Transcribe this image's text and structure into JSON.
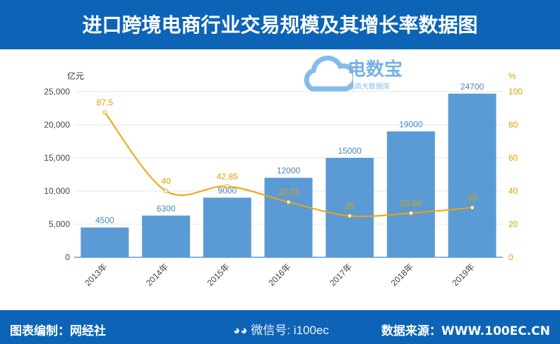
{
  "header": {
    "title": "进口跨境电商行业交易规模及其增长率数据图"
  },
  "footer": {
    "left": "图表编制：网经社",
    "right": "数据来源：WWW.100EC.CN",
    "wechat": "微信号: i100ec"
  },
  "watermark": {
    "name": "电数宝",
    "sub": "电商大数据库"
  },
  "chart_data": {
    "type": "bar+line",
    "categories": [
      "2013年",
      "2014年",
      "2015年",
      "2016年",
      "2017年",
      "2018年",
      "2019年"
    ],
    "series": [
      {
        "name": "交易规模",
        "unit": "亿元",
        "type": "bar",
        "axis": "left",
        "color": "#5b9bd5",
        "values": [
          4500,
          6300,
          9000,
          12000,
          15000,
          19000,
          24700
        ]
      },
      {
        "name": "增长率",
        "unit": "%",
        "type": "line",
        "axis": "right",
        "color": "#f0a30a",
        "values": [
          87.5,
          40,
          42.85,
          33.33,
          25,
          26.66,
          30
        ]
      }
    ],
    "ylabel": "亿元",
    "y2label": "%",
    "ylim": [
      0,
      25000
    ],
    "yticks": [
      "0",
      "5,000",
      "10,000",
      "15,000",
      "20,000",
      "25,000"
    ],
    "y2lim": [
      0,
      100
    ],
    "y2ticks": [
      "0",
      "20",
      "40",
      "60",
      "80",
      "100"
    ],
    "grid": true
  }
}
